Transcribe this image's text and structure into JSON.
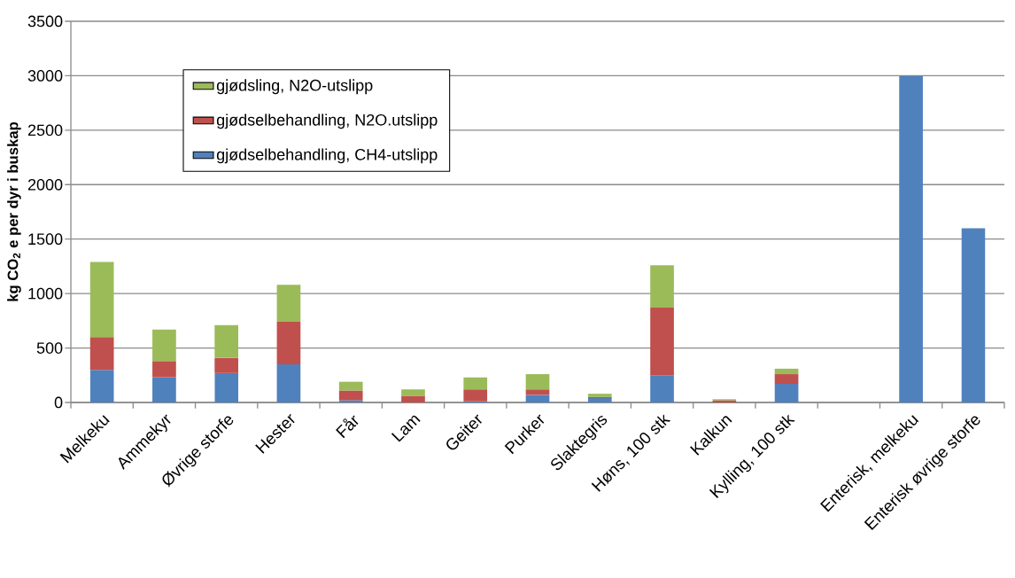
{
  "chart_data": {
    "type": "bar",
    "stacked": true,
    "ylabel": "kg CO$_{2}$ e per dyr i buskap",
    "categories": [
      "Melkeku",
      "Ammekyr",
      "Øvrige storfe",
      "Hester",
      "Får",
      "Lam",
      "Geiter",
      "Purker",
      "Slaktegris",
      "Høns, 100 stk",
      "Kalkun",
      "Kylling, 100 stk",
      null,
      "Enterisk, melkeku",
      "Enterisk øvrige storfe"
    ],
    "series": [
      {
        "name": "gjødselbehandling, CH4-utslipp",
        "color": "#4f81bd",
        "values": [
          300,
          230,
          270,
          350,
          20,
          0,
          10,
          70,
          40,
          250,
          0,
          170,
          null,
          3000,
          1600
        ]
      },
      {
        "name": "gjødselbehandling, N2O.utslipp",
        "color": "#c0504d",
        "values": [
          300,
          150,
          140,
          390,
          90,
          60,
          110,
          50,
          10,
          620,
          20,
          90,
          null,
          null,
          null
        ]
      },
      {
        "name": "gjødsling, N2O-utslipp",
        "color": "#9bbb59",
        "values": [
          690,
          290,
          300,
          340,
          80,
          60,
          110,
          140,
          30,
          390,
          10,
          50,
          null,
          null,
          null
        ]
      }
    ],
    "ylim": [
      0,
      3500
    ],
    "yticks": [
      0,
      500,
      1000,
      1500,
      2000,
      2500,
      3000,
      3500
    ],
    "grid": "y",
    "legend": "top left"
  }
}
